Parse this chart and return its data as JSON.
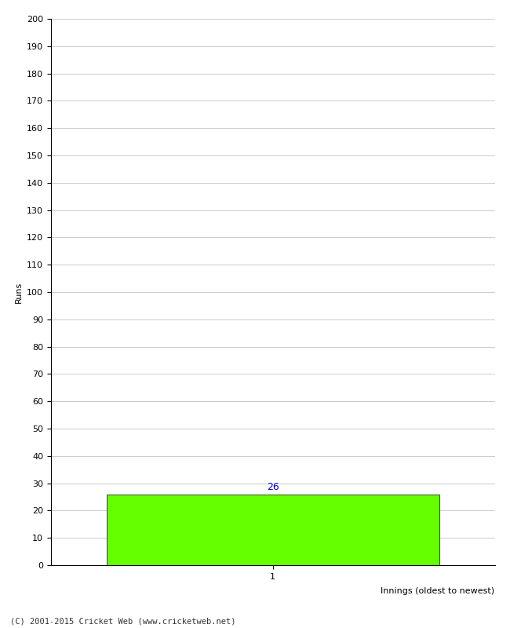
{
  "xlabel": "Innings (oldest to newest)",
  "ylabel": "Runs",
  "bar_values": [
    26
  ],
  "bar_positions": [
    1
  ],
  "bar_color": "#66ff00",
  "bar_edgecolor": "#000000",
  "bar_label_color": "#0000cc",
  "ylim": [
    0,
    200
  ],
  "yticks": [
    0,
    10,
    20,
    30,
    40,
    50,
    60,
    70,
    80,
    90,
    100,
    110,
    120,
    130,
    140,
    150,
    160,
    170,
    180,
    190,
    200
  ],
  "background_color": "#ffffff",
  "grid_color": "#cccccc",
  "footer_text": "(C) 2001-2015 Cricket Web (www.cricketweb.net)",
  "bar_width": 0.75
}
